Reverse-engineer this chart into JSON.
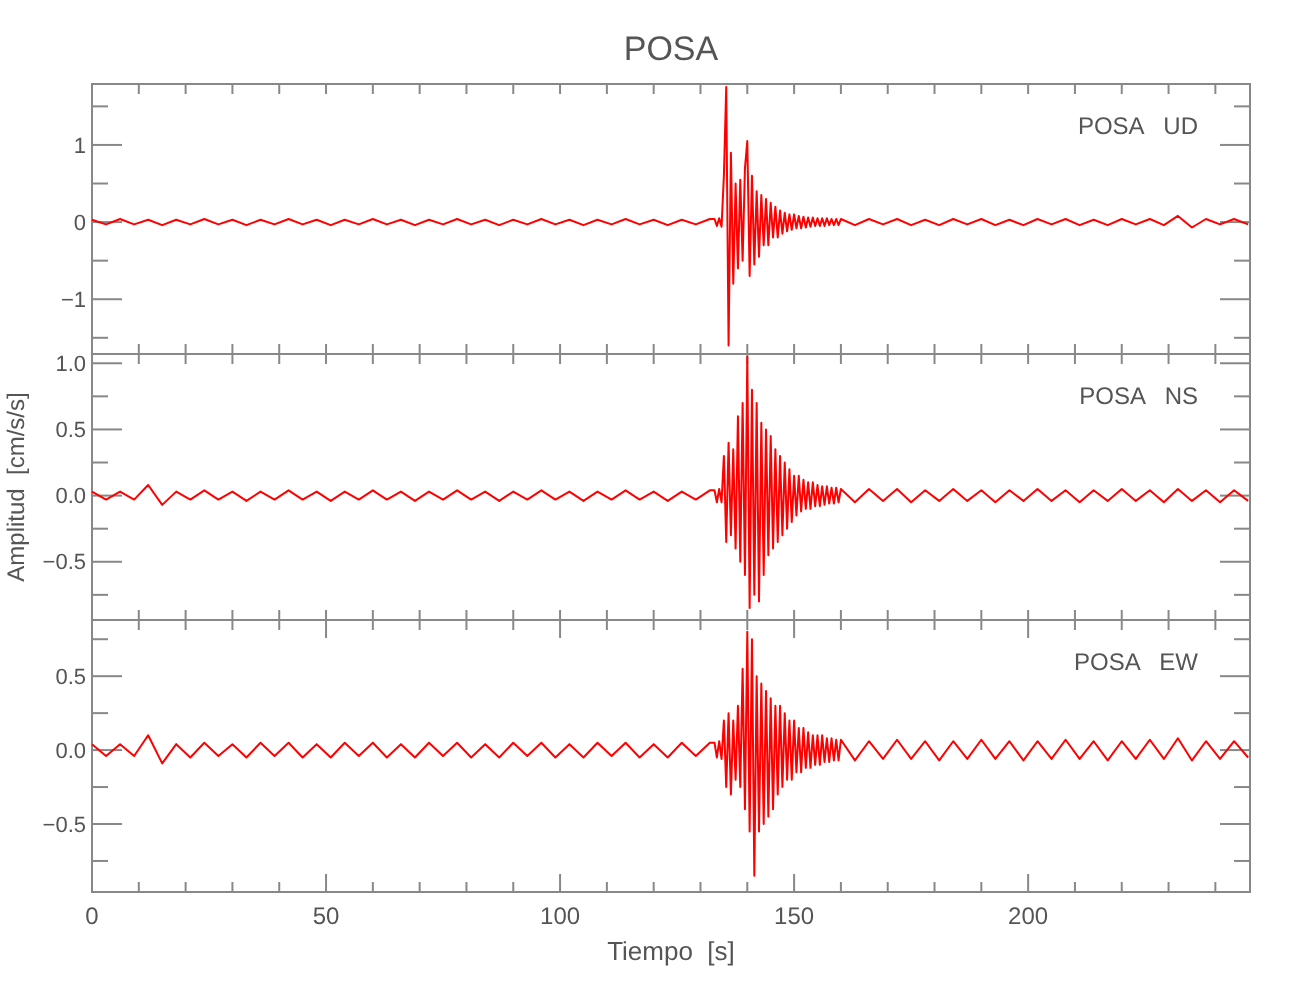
{
  "chart_data": [
    {
      "type": "line",
      "title": "POSA",
      "annotations": [
        "POSA   UD"
      ],
      "xlim": [
        0,
        247.4
      ],
      "xticks": [
        0,
        {
          "value": 10,
          "label": null
        },
        {
          "value": 20,
          "label": null
        },
        {
          "value": 30,
          "label": null
        },
        {
          "value": 40,
          "label": null
        },
        {
          "value": 50,
          "label": null
        },
        {
          "value": 60,
          "label": null
        },
        {
          "value": 70,
          "label": null
        },
        {
          "value": 80,
          "label": null
        },
        {
          "value": 90,
          "label": null
        },
        {
          "value": 100,
          "label": null
        },
        {
          "value": 110,
          "label": null
        },
        {
          "value": 120,
          "label": null
        },
        {
          "value": 130,
          "label": null
        },
        {
          "value": 140,
          "label": null
        },
        {
          "value": 150,
          "label": null
        },
        {
          "value": 160,
          "label": null
        },
        {
          "value": 170,
          "label": null
        },
        {
          "value": 180,
          "label": null
        },
        {
          "value": 190,
          "label": null
        },
        {
          "value": 200,
          "label": null
        },
        {
          "value": 210,
          "label": null
        },
        {
          "value": 220,
          "label": null
        },
        {
          "value": 230,
          "label": null
        },
        {
          "value": 240,
          "label": null
        }
      ],
      "ylim": [
        -1.71,
        1.79
      ],
      "yticks": [
        {
          "value": -1.5,
          "label": null
        },
        -1,
        {
          "value": -0.5,
          "label": null
        },
        0,
        {
          "value": 0.5,
          "label": null
        },
        1,
        {
          "value": 1.5,
          "label": null
        }
      ],
      "tick_labels": "y",
      "x": [
        0,
        3,
        6,
        9,
        12,
        15,
        18,
        21,
        24,
        27,
        30,
        33,
        36,
        39,
        42,
        45,
        48,
        51,
        54,
        57,
        60,
        63,
        66,
        69,
        72,
        75,
        78,
        81,
        84,
        87,
        90,
        93,
        96,
        99,
        102,
        105,
        108,
        111,
        114,
        117,
        120,
        123,
        126,
        129,
        132,
        133,
        133.5,
        134,
        134.5,
        135,
        135.5,
        136,
        136.5,
        137,
        137.5,
        138,
        138.5,
        139,
        139.5,
        140,
        140.5,
        141,
        141.5,
        142,
        142.5,
        143,
        143.5,
        144,
        144.5,
        145,
        145.5,
        146,
        146.5,
        147,
        147.5,
        148,
        148.5,
        149,
        149.5,
        150,
        150.5,
        151,
        151.5,
        152,
        152.5,
        153,
        153.5,
        154,
        154.5,
        155,
        155.5,
        156,
        156.5,
        157,
        157.5,
        158,
        158.5,
        159,
        159.5,
        160,
        163,
        166,
        169,
        172,
        175,
        178,
        181,
        184,
        187,
        190,
        193,
        196,
        199,
        202,
        205,
        208,
        211,
        214,
        217,
        220,
        223,
        226,
        229,
        232,
        235,
        238,
        241,
        244,
        247
      ],
      "series": [
        {
          "color": "#ff0000",
          "values": [
            0.03,
            -0.03,
            0.04,
            -0.03,
            0.03,
            -0.04,
            0.03,
            -0.03,
            0.04,
            -0.03,
            0.03,
            -0.04,
            0.03,
            -0.03,
            0.04,
            -0.03,
            0.03,
            -0.04,
            0.03,
            -0.03,
            0.04,
            -0.03,
            0.03,
            -0.04,
            0.03,
            -0.03,
            0.04,
            -0.03,
            0.03,
            -0.04,
            0.03,
            -0.03,
            0.04,
            -0.03,
            0.03,
            -0.04,
            0.03,
            -0.03,
            0.04,
            -0.03,
            0.03,
            -0.04,
            0.03,
            -0.03,
            0.04,
            0.04,
            -0.05,
            0.05,
            -0.06,
            0.6,
            1.75,
            -1.6,
            0.9,
            -0.8,
            0.5,
            -0.6,
            0.55,
            -0.5,
            0.7,
            1.05,
            -0.7,
            0.6,
            -0.55,
            0.4,
            -0.45,
            0.35,
            -0.3,
            0.3,
            -0.3,
            0.25,
            -0.2,
            0.2,
            -0.2,
            0.15,
            -0.15,
            0.12,
            -0.12,
            0.1,
            -0.1,
            0.1,
            -0.08,
            0.08,
            -0.08,
            0.07,
            -0.07,
            0.06,
            -0.06,
            0.06,
            -0.05,
            0.05,
            -0.05,
            0.05,
            -0.05,
            0.05,
            -0.04,
            0.04,
            -0.04,
            0.04,
            -0.04,
            0.04,
            -0.04,
            0.04,
            -0.03,
            0.04,
            -0.04,
            0.03,
            -0.04,
            0.04,
            -0.03,
            0.04,
            -0.04,
            0.03,
            -0.04,
            0.04,
            -0.03,
            0.04,
            -0.04,
            0.03,
            -0.04,
            0.04,
            -0.03,
            0.04,
            -0.04,
            0.08,
            -0.07,
            0.04,
            -0.03,
            0.04,
            -0.03
          ]
        }
      ]
    },
    {
      "type": "line",
      "ylabel": "Amplitud  [cm/s/s]",
      "annotations": [
        "POSA   NS"
      ],
      "xlim": [
        0,
        247.4
      ],
      "xticks": [
        0,
        {
          "value": 10,
          "label": null
        },
        {
          "value": 20,
          "label": null
        },
        {
          "value": 30,
          "label": null
        },
        {
          "value": 40,
          "label": null
        },
        {
          "value": 50,
          "label": null
        },
        {
          "value": 60,
          "label": null
        },
        {
          "value": 70,
          "label": null
        },
        {
          "value": 80,
          "label": null
        },
        {
          "value": 90,
          "label": null
        },
        {
          "value": 100,
          "label": null
        },
        {
          "value": 110,
          "label": null
        },
        {
          "value": 120,
          "label": null
        },
        {
          "value": 130,
          "label": null
        },
        {
          "value": 140,
          "label": null
        },
        {
          "value": 150,
          "label": null
        },
        {
          "value": 160,
          "label": null
        },
        {
          "value": 170,
          "label": null
        },
        {
          "value": 180,
          "label": null
        },
        {
          "value": 190,
          "label": null
        },
        {
          "value": 200,
          "label": null
        },
        {
          "value": 210,
          "label": null
        },
        {
          "value": 220,
          "label": null
        },
        {
          "value": 230,
          "label": null
        },
        {
          "value": 240,
          "label": null
        }
      ],
      "ylim": [
        -0.94,
        1.07
      ],
      "yticks": [
        {
          "value": -0.75,
          "label": null
        },
        {
          "value": -0.5,
          "label": "−0.5"
        },
        {
          "value": -0.25,
          "label": null
        },
        {
          "value": 0,
          "label": "0.0"
        },
        {
          "value": 0.25,
          "label": null
        },
        0.5,
        {
          "value": 0.75,
          "label": null
        },
        {
          "value": 1,
          "label": "1.0"
        }
      ],
      "tick_labels": "y",
      "x": [
        0,
        3,
        6,
        9,
        12,
        15,
        18,
        21,
        24,
        27,
        30,
        33,
        36,
        39,
        42,
        45,
        48,
        51,
        54,
        57,
        60,
        63,
        66,
        69,
        72,
        75,
        78,
        81,
        84,
        87,
        90,
        93,
        96,
        99,
        102,
        105,
        108,
        111,
        114,
        117,
        120,
        123,
        126,
        129,
        132,
        133,
        133.5,
        134,
        134.5,
        135,
        135.5,
        136,
        136.5,
        137,
        137.5,
        138,
        138.5,
        139,
        139.5,
        140,
        140.5,
        141,
        141.5,
        142,
        142.5,
        143,
        143.5,
        144,
        144.5,
        145,
        145.5,
        146,
        146.5,
        147,
        147.5,
        148,
        148.5,
        149,
        149.5,
        150,
        150.5,
        151,
        151.5,
        152,
        152.5,
        153,
        153.5,
        154,
        154.5,
        155,
        155.5,
        156,
        156.5,
        157,
        157.5,
        158,
        158.5,
        159,
        159.5,
        160,
        163,
        166,
        169,
        172,
        175,
        178,
        181,
        184,
        187,
        190,
        193,
        196,
        199,
        202,
        205,
        208,
        211,
        214,
        217,
        220,
        223,
        226,
        229,
        232,
        235,
        238,
        241,
        244,
        247
      ],
      "series": [
        {
          "color": "#ff0000",
          "values": [
            0.03,
            -0.03,
            0.03,
            -0.03,
            0.08,
            -0.07,
            0.03,
            -0.03,
            0.04,
            -0.03,
            0.03,
            -0.04,
            0.03,
            -0.03,
            0.04,
            -0.03,
            0.03,
            -0.04,
            0.03,
            -0.03,
            0.04,
            -0.03,
            0.03,
            -0.04,
            0.03,
            -0.03,
            0.04,
            -0.03,
            0.03,
            -0.04,
            0.03,
            -0.03,
            0.04,
            -0.03,
            0.03,
            -0.04,
            0.03,
            -0.03,
            0.04,
            -0.03,
            0.03,
            -0.04,
            0.03,
            -0.03,
            0.04,
            0.04,
            -0.05,
            0.05,
            -0.05,
            0.3,
            -0.35,
            0.4,
            -0.3,
            0.35,
            -0.4,
            0.6,
            -0.5,
            0.7,
            -0.6,
            1.05,
            -0.85,
            0.8,
            -0.75,
            0.7,
            -0.8,
            0.55,
            -0.6,
            0.5,
            -0.45,
            0.45,
            -0.4,
            0.35,
            -0.35,
            0.3,
            -0.3,
            0.25,
            -0.25,
            0.2,
            -0.2,
            0.15,
            -0.15,
            0.15,
            -0.12,
            0.12,
            -0.1,
            0.1,
            -0.1,
            0.1,
            -0.08,
            0.08,
            -0.08,
            0.07,
            -0.07,
            0.07,
            -0.06,
            0.06,
            -0.06,
            0.06,
            -0.05,
            0.05,
            -0.05,
            0.05,
            -0.04,
            0.05,
            -0.05,
            0.04,
            -0.04,
            0.05,
            -0.04,
            0.04,
            -0.05,
            0.04,
            -0.04,
            0.05,
            -0.04,
            0.04,
            -0.05,
            0.04,
            -0.04,
            0.05,
            -0.04,
            0.04,
            -0.05,
            0.05,
            -0.04,
            0.04,
            -0.05,
            0.04,
            -0.04
          ]
        }
      ]
    },
    {
      "type": "line",
      "xlabel": "Tiempo  [s]",
      "annotations": [
        "POSA   EW"
      ],
      "xlim": [
        0,
        247.4
      ],
      "xticks": [
        0,
        {
          "value": 10,
          "label": null
        },
        {
          "value": 20,
          "label": null
        },
        {
          "value": 30,
          "label": null
        },
        {
          "value": 40,
          "label": null
        },
        50,
        {
          "value": 60,
          "label": null
        },
        {
          "value": 70,
          "label": null
        },
        {
          "value": 80,
          "label": null
        },
        {
          "value": 90,
          "label": null
        },
        100,
        {
          "value": 110,
          "label": null
        },
        {
          "value": 120,
          "label": null
        },
        {
          "value": 130,
          "label": null
        },
        {
          "value": 140,
          "label": null
        },
        150,
        {
          "value": 160,
          "label": null
        },
        {
          "value": 170,
          "label": null
        },
        {
          "value": 180,
          "label": null
        },
        {
          "value": 190,
          "label": null
        },
        200,
        {
          "value": 210,
          "label": null
        },
        {
          "value": 220,
          "label": null
        },
        {
          "value": 230,
          "label": null
        },
        {
          "value": 240,
          "label": null
        }
      ],
      "ylim": [
        -0.96,
        0.88
      ],
      "yticks": [
        {
          "value": -0.75,
          "label": null
        },
        {
          "value": -0.5,
          "label": "−0.5"
        },
        {
          "value": -0.25,
          "label": null
        },
        {
          "value": 0,
          "label": "0.0"
        },
        {
          "value": 0.25,
          "label": null
        },
        0.5,
        {
          "value": 0.75,
          "label": null
        }
      ],
      "x": [
        0,
        3,
        6,
        9,
        12,
        15,
        18,
        21,
        24,
        27,
        30,
        33,
        36,
        39,
        42,
        45,
        48,
        51,
        54,
        57,
        60,
        63,
        66,
        69,
        72,
        75,
        78,
        81,
        84,
        87,
        90,
        93,
        96,
        99,
        102,
        105,
        108,
        111,
        114,
        117,
        120,
        123,
        126,
        129,
        132,
        133,
        133.5,
        134,
        134.5,
        135,
        135.5,
        136,
        136.5,
        137,
        137.5,
        138,
        138.5,
        139,
        139.5,
        140,
        140.5,
        141,
        141.5,
        142,
        142.5,
        143,
        143.5,
        144,
        144.5,
        145,
        145.5,
        146,
        146.5,
        147,
        147.5,
        148,
        148.5,
        149,
        149.5,
        150,
        150.5,
        151,
        151.5,
        152,
        152.5,
        153,
        153.5,
        154,
        154.5,
        155,
        155.5,
        156,
        156.5,
        157,
        157.5,
        158,
        158.5,
        159,
        159.5,
        160,
        163,
        166,
        169,
        172,
        175,
        178,
        181,
        184,
        187,
        190,
        193,
        196,
        199,
        202,
        205,
        208,
        211,
        214,
        217,
        220,
        223,
        226,
        229,
        232,
        235,
        238,
        241,
        244,
        247
      ],
      "series": [
        {
          "color": "#ff0000",
          "values": [
            0.04,
            -0.04,
            0.04,
            -0.04,
            0.1,
            -0.09,
            0.04,
            -0.05,
            0.05,
            -0.04,
            0.04,
            -0.05,
            0.05,
            -0.04,
            0.05,
            -0.05,
            0.04,
            -0.05,
            0.05,
            -0.04,
            0.05,
            -0.05,
            0.04,
            -0.05,
            0.05,
            -0.04,
            0.05,
            -0.05,
            0.04,
            -0.05,
            0.05,
            -0.04,
            0.05,
            -0.05,
            0.04,
            -0.05,
            0.05,
            -0.04,
            0.05,
            -0.05,
            0.04,
            -0.05,
            0.05,
            -0.04,
            0.05,
            0.05,
            -0.05,
            0.06,
            -0.06,
            0.2,
            -0.25,
            0.25,
            -0.3,
            0.2,
            -0.2,
            0.3,
            -0.25,
            0.55,
            -0.4,
            0.8,
            -0.55,
            0.75,
            -0.85,
            0.5,
            -0.55,
            0.45,
            -0.5,
            0.4,
            -0.45,
            0.35,
            -0.4,
            0.3,
            -0.3,
            0.3,
            -0.25,
            0.25,
            -0.2,
            0.2,
            -0.2,
            0.2,
            -0.15,
            0.15,
            -0.15,
            0.15,
            -0.12,
            0.12,
            -0.12,
            0.1,
            -0.1,
            0.1,
            -0.1,
            0.1,
            -0.08,
            0.08,
            -0.08,
            0.08,
            -0.07,
            0.07,
            -0.07,
            0.07,
            -0.07,
            0.06,
            -0.06,
            0.07,
            -0.06,
            0.06,
            -0.07,
            0.06,
            -0.06,
            0.07,
            -0.06,
            0.06,
            -0.07,
            0.06,
            -0.06,
            0.07,
            -0.06,
            0.06,
            -0.07,
            0.06,
            -0.06,
            0.07,
            -0.06,
            0.08,
            -0.07,
            0.06,
            -0.06,
            0.06,
            -0.05
          ]
        }
      ]
    }
  ]
}
